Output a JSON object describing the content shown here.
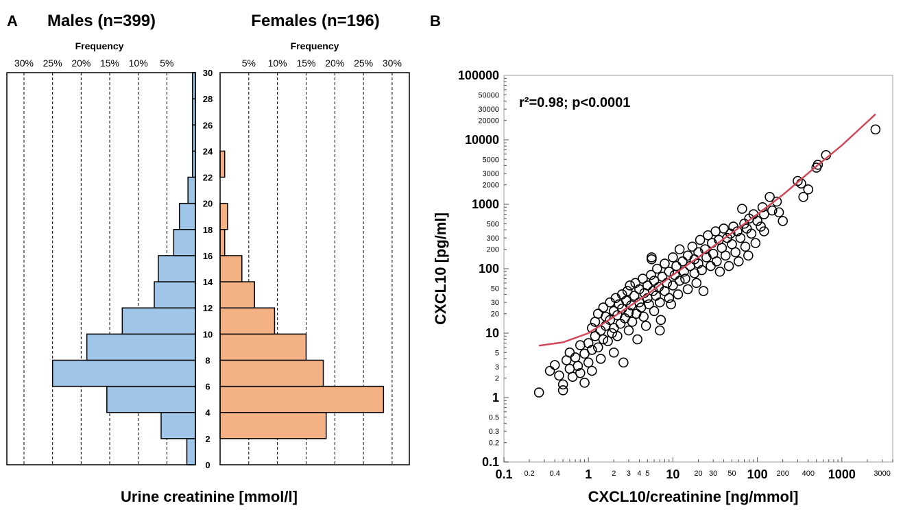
{
  "colors": {
    "males": "#9FC5E8",
    "females": "#F4B183",
    "fit": "#D2475A",
    "frame": "#000000",
    "frame_b": "#BDBDBD"
  },
  "chart_data": [
    {
      "type": "bar",
      "panel_label": "A",
      "orientation": "horizontal-pyramid",
      "left_title": "Males (n=399)",
      "right_title": "Females (n=196)",
      "frequency_label": "Frequency",
      "ylabel": "Urine creatinine [mmol/l]",
      "freq_ticks_left": [
        "30%",
        "25%",
        "20%",
        "15%",
        "10%",
        "5%"
      ],
      "freq_ticks_right": [
        "5%",
        "10%",
        "15%",
        "20%",
        "25%",
        "30%"
      ],
      "freq_max": 33,
      "y_ticks": [
        "0",
        "2",
        "4",
        "6",
        "8",
        "10",
        "12",
        "14",
        "16",
        "18",
        "20",
        "22",
        "24",
        "26",
        "28",
        "30"
      ],
      "ylim": [
        0,
        30
      ],
      "bins": [
        [
          0,
          2
        ],
        [
          2,
          4
        ],
        [
          4,
          6
        ],
        [
          6,
          8
        ],
        [
          8,
          10
        ],
        [
          10,
          12
        ],
        [
          12,
          14
        ],
        [
          14,
          16
        ],
        [
          16,
          18
        ],
        [
          18,
          20
        ],
        [
          20,
          22
        ],
        [
          22,
          24
        ],
        [
          24,
          26
        ],
        [
          26,
          28
        ],
        [
          28,
          30
        ]
      ],
      "series": [
        {
          "name": "Males (n=399)",
          "values": [
            1.5,
            6.0,
            15.5,
            25.0,
            19.0,
            12.8,
            7.2,
            6.5,
            3.8,
            2.8,
            1.3,
            0.5,
            0.5,
            0.5,
            0.5
          ]
        },
        {
          "name": "Females (n=196)",
          "values": [
            0,
            18.5,
            28.5,
            18.0,
            15.0,
            9.5,
            6.0,
            3.8,
            0.8,
            1.3,
            0,
            0.8,
            0,
            0,
            0
          ]
        }
      ]
    },
    {
      "type": "scatter",
      "panel_label": "B",
      "xlabel": "CXCL10/creatinine [ng/mmol]",
      "ylabel": "CXCL10 [pg/ml]",
      "annotation": "r²=0.98; p<0.0001",
      "xscale": "log",
      "yscale": "log",
      "xlim": [
        0.1,
        4000
      ],
      "ylim": [
        0.1,
        100000
      ],
      "x_major_ticks": [
        {
          "v": 0.1,
          "t": "0.1"
        },
        {
          "v": 1,
          "t": "1"
        },
        {
          "v": 10,
          "t": "10"
        },
        {
          "v": 100,
          "t": "100"
        },
        {
          "v": 1000,
          "t": "1000"
        }
      ],
      "x_minor_ticks": [
        {
          "v": 0.2,
          "t": "0.2"
        },
        {
          "v": 0.4,
          "t": "0.4"
        },
        {
          "v": 2,
          "t": "2"
        },
        {
          "v": 3,
          "t": "3"
        },
        {
          "v": 4,
          "t": "4"
        },
        {
          "v": 5,
          "t": "5"
        },
        {
          "v": 20,
          "t": "20"
        },
        {
          "v": 30,
          "t": "30"
        },
        {
          "v": 50,
          "t": "50"
        },
        {
          "v": 200,
          "t": "200"
        },
        {
          "v": 400,
          "t": "400"
        },
        {
          "v": 3000,
          "t": "3000"
        }
      ],
      "y_major_ticks": [
        {
          "v": 0.1,
          "t": "0.1"
        },
        {
          "v": 1,
          "t": "1"
        },
        {
          "v": 10,
          "t": "10"
        },
        {
          "v": 100,
          "t": "100"
        },
        {
          "v": 1000,
          "t": "1000"
        },
        {
          "v": 10000,
          "t": "10000"
        },
        {
          "v": 100000,
          "t": "100000"
        }
      ],
      "y_minor_ticks": [
        {
          "v": 0.2,
          "t": "0.2"
        },
        {
          "v": 0.3,
          "t": "0.3"
        },
        {
          "v": 0.5,
          "t": "0.5"
        },
        {
          "v": 2,
          "t": "2"
        },
        {
          "v": 3,
          "t": "3"
        },
        {
          "v": 5,
          "t": "5"
        },
        {
          "v": 20,
          "t": "20"
        },
        {
          "v": 30,
          "t": "30"
        },
        {
          "v": 50,
          "t": "50"
        },
        {
          "v": 200,
          "t": "200"
        },
        {
          "v": 300,
          "t": "300"
        },
        {
          "v": 500,
          "t": "500"
        },
        {
          "v": 2000,
          "t": "2000"
        },
        {
          "v": 3000,
          "t": "3000"
        },
        {
          "v": 5000,
          "t": "5000"
        },
        {
          "v": 20000,
          "t": "20000"
        },
        {
          "v": 30000,
          "t": "30000"
        },
        {
          "v": 50000,
          "t": "50000"
        }
      ],
      "fit_curve": [
        [
          0.26,
          6.4
        ],
        [
          0.5,
          7.2
        ],
        [
          1,
          10
        ],
        [
          2,
          18
        ],
        [
          5,
          40
        ],
        [
          10,
          80
        ],
        [
          20,
          150
        ],
        [
          50,
          360
        ],
        [
          100,
          700
        ],
        [
          200,
          1400
        ],
        [
          500,
          3900
        ],
        [
          1000,
          8200
        ],
        [
          2500,
          25000
        ]
      ],
      "points": [
        [
          0.26,
          1.2
        ],
        [
          0.35,
          2.6
        ],
        [
          0.4,
          3.2
        ],
        [
          0.45,
          2.2
        ],
        [
          0.5,
          1.6
        ],
        [
          0.5,
          1.3
        ],
        [
          0.55,
          3.8
        ],
        [
          0.6,
          5
        ],
        [
          0.6,
          2.8
        ],
        [
          0.65,
          2.1
        ],
        [
          0.7,
          4.2
        ],
        [
          0.75,
          3.1
        ],
        [
          0.8,
          6.5
        ],
        [
          0.8,
          2.4
        ],
        [
          0.9,
          4.8
        ],
        [
          0.9,
          1.7
        ],
        [
          1,
          7
        ],
        [
          1,
          3.5
        ],
        [
          1.1,
          12
        ],
        [
          1.1,
          5.5
        ],
        [
          1.1,
          2.6
        ],
        [
          1.2,
          9
        ],
        [
          1.2,
          15
        ],
        [
          1.3,
          6
        ],
        [
          1.3,
          20
        ],
        [
          1.4,
          11
        ],
        [
          1.4,
          4
        ],
        [
          1.5,
          8
        ],
        [
          1.5,
          25
        ],
        [
          1.6,
          13
        ],
        [
          1.6,
          18
        ],
        [
          1.7,
          7.5
        ],
        [
          1.8,
          16
        ],
        [
          1.8,
          30
        ],
        [
          1.9,
          10
        ],
        [
          2,
          22
        ],
        [
          2,
          12
        ],
        [
          2,
          5
        ],
        [
          2.1,
          35
        ],
        [
          2.2,
          19
        ],
        [
          2.2,
          9
        ],
        [
          2.3,
          28
        ],
        [
          2.4,
          14
        ],
        [
          2.5,
          40
        ],
        [
          2.5,
          24
        ],
        [
          2.6,
          3.5
        ],
        [
          2.7,
          17
        ],
        [
          2.8,
          32
        ],
        [
          2.9,
          45
        ],
        [
          3,
          21
        ],
        [
          3,
          11
        ],
        [
          3.1,
          55
        ],
        [
          3.2,
          27
        ],
        [
          3.3,
          15
        ],
        [
          3.5,
          38
        ],
        [
          3.6,
          60
        ],
        [
          3.7,
          20
        ],
        [
          3.8,
          8
        ],
        [
          4,
          30
        ],
        [
          4,
          48
        ],
        [
          4.2,
          25
        ],
        [
          4.4,
          70
        ],
        [
          4.5,
          18
        ],
        [
          4.6,
          42
        ],
        [
          4.8,
          13
        ],
        [
          5,
          35
        ],
        [
          5,
          55
        ],
        [
          5.2,
          28
        ],
        [
          5.5,
          80
        ],
        [
          5.6,
          140
        ],
        [
          5.6,
          150
        ],
        [
          5.8,
          45
        ],
        [
          6,
          22
        ],
        [
          6,
          65
        ],
        [
          6.3,
          38
        ],
        [
          6.5,
          100
        ],
        [
          6.8,
          52
        ],
        [
          7,
          30
        ],
        [
          7,
          11
        ],
        [
          7.2,
          16
        ],
        [
          7.5,
          75
        ],
        [
          8,
          45
        ],
        [
          8,
          120
        ],
        [
          8.5,
          60
        ],
        [
          9,
          90
        ],
        [
          9,
          35
        ],
        [
          9.5,
          28
        ],
        [
          10,
          55
        ],
        [
          10,
          150
        ],
        [
          10.5,
          80
        ],
        [
          11,
          110
        ],
        [
          11.5,
          40
        ],
        [
          12,
          65
        ],
        [
          12,
          200
        ],
        [
          13,
          130
        ],
        [
          13.5,
          90
        ],
        [
          14,
          70
        ],
        [
          15,
          160
        ],
        [
          15,
          48
        ],
        [
          16,
          110
        ],
        [
          17,
          220
        ],
        [
          18,
          85
        ],
        [
          18,
          140
        ],
        [
          19,
          60
        ],
        [
          20,
          180
        ],
        [
          20,
          120
        ],
        [
          21,
          280
        ],
        [
          22,
          95
        ],
        [
          23,
          45
        ],
        [
          24,
          200
        ],
        [
          25,
          150
        ],
        [
          26,
          330
        ],
        [
          28,
          110
        ],
        [
          29,
          250
        ],
        [
          30,
          170
        ],
        [
          32,
          380
        ],
        [
          33,
          130
        ],
        [
          35,
          280
        ],
        [
          36,
          90
        ],
        [
          38,
          210
        ],
        [
          40,
          420
        ],
        [
          42,
          160
        ],
        [
          44,
          300
        ],
        [
          46,
          110
        ],
        [
          48,
          350
        ],
        [
          50,
          240
        ],
        [
          52,
          450
        ],
        [
          55,
          180
        ],
        [
          58,
          380
        ],
        [
          60,
          130
        ],
        [
          63,
          300
        ],
        [
          66,
          850
        ],
        [
          70,
          500
        ],
        [
          72,
          220
        ],
        [
          75,
          420
        ],
        [
          78,
          160
        ],
        [
          80,
          600
        ],
        [
          85,
          350
        ],
        [
          90,
          700
        ],
        [
          95,
          250
        ],
        [
          100,
          550
        ],
        [
          110,
          450
        ],
        [
          115,
          900
        ],
        [
          120,
          700
        ],
        [
          120,
          380
        ],
        [
          140,
          1300
        ],
        [
          150,
          800
        ],
        [
          170,
          1100
        ],
        [
          180,
          750
        ],
        [
          200,
          550
        ],
        [
          300,
          2300
        ],
        [
          330,
          2100
        ],
        [
          350,
          1300
        ],
        [
          400,
          1700
        ],
        [
          500,
          3700
        ],
        [
          520,
          4100
        ],
        [
          650,
          5800
        ],
        [
          2500,
          14500
        ]
      ]
    }
  ]
}
